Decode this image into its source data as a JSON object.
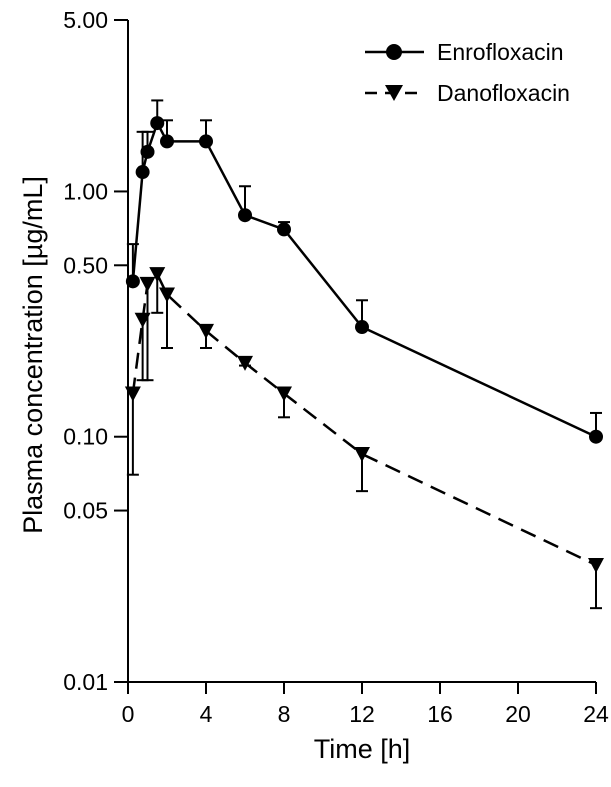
{
  "chart_data": {
    "type": "line",
    "title": "",
    "xlabel": "Time [h]",
    "ylabel": "Plasma concentration [µg/mL]",
    "xlim": [
      0,
      24
    ],
    "ylim": [
      0.01,
      5
    ],
    "yscale": "log",
    "grid": false,
    "legend_position": "top-right",
    "x_ticks": [
      0,
      4,
      8,
      12,
      16,
      20,
      24
    ],
    "x_tick_labels": [
      "0",
      "4",
      "8",
      "12",
      "16",
      "20",
      "24"
    ],
    "y_ticks": [
      5,
      1,
      0.5,
      0.1,
      0.05,
      0.01
    ],
    "y_tick_labels": [
      "5.00",
      "1.00",
      "0.50",
      "0.10",
      "0.05",
      "0.01"
    ],
    "series": [
      {
        "name": "Enrofloxacin",
        "marker": "circle",
        "line_style": "solid",
        "color": "#000000",
        "points": [
          {
            "x": 0.25,
            "y": 0.43,
            "err_high": 0.61
          },
          {
            "x": 0.75,
            "y": 1.2,
            "err_high": 1.75
          },
          {
            "x": 1.0,
            "y": 1.45,
            "err_high": 1.75
          },
          {
            "x": 1.5,
            "y": 1.9,
            "err_high": 2.35
          },
          {
            "x": 2.0,
            "y": 1.6,
            "err_high": 1.95
          },
          {
            "x": 4.0,
            "y": 1.6,
            "err_high": 1.95
          },
          {
            "x": 6.0,
            "y": 0.8,
            "err_high": 1.05
          },
          {
            "x": 8.0,
            "y": 0.7,
            "err_high": 0.75
          },
          {
            "x": 12.0,
            "y": 0.28,
            "err_high": 0.36
          },
          {
            "x": 24.0,
            "y": 0.1,
            "err_high": 0.125
          }
        ]
      },
      {
        "name": "Danofloxacin",
        "marker": "triangle-down",
        "line_style": "dashed",
        "color": "#000000",
        "points": [
          {
            "x": 0.25,
            "y": 0.15,
            "err_low": 0.07
          },
          {
            "x": 0.75,
            "y": 0.3,
            "err_low": 0.17
          },
          {
            "x": 1.0,
            "y": 0.42,
            "err_low": 0.17
          },
          {
            "x": 1.5,
            "y": 0.46,
            "err_low": 0.32
          },
          {
            "x": 2.0,
            "y": 0.38,
            "err_low": 0.23
          },
          {
            "x": 4.0,
            "y": 0.27,
            "err_low": 0.23
          },
          {
            "x": 6.0,
            "y": 0.2,
            "err_low": 0.195
          },
          {
            "x": 8.0,
            "y": 0.15,
            "err_low": 0.12
          },
          {
            "x": 12.0,
            "y": 0.085,
            "err_low": 0.06
          },
          {
            "x": 24.0,
            "y": 0.03,
            "err_low": 0.02
          }
        ]
      }
    ]
  }
}
